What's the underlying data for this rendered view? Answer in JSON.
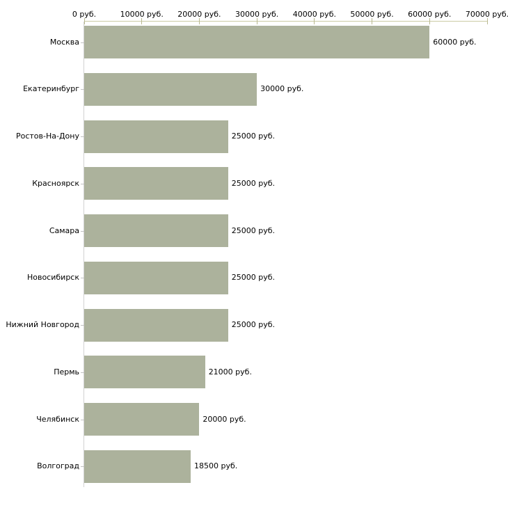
{
  "chart_data": {
    "type": "bar",
    "orientation": "horizontal",
    "title": "",
    "xlabel": "",
    "ylabel": "",
    "unit": "руб.",
    "categories": [
      "Москва",
      "Екатеринбург",
      "Ростов-На-Дону",
      "Красноярск",
      "Самара",
      "Новосибирск",
      "Нижний Новгород",
      "Пермь",
      "Челябинск",
      "Волгоград"
    ],
    "values": [
      60000,
      30000,
      25000,
      25000,
      25000,
      25000,
      25000,
      21000,
      20000,
      18500
    ],
    "value_labels": [
      "60000 руб.",
      "30000 руб.",
      "25000 руб.",
      "25000 руб.",
      "25000 руб.",
      "25000 руб.",
      "25000 руб.",
      "21000 руб.",
      "20000 руб.",
      "18500 руб."
    ],
    "x_axis": {
      "min": 0,
      "max": 70000,
      "tick_step": 10000,
      "tick_values": [
        0,
        10000,
        20000,
        30000,
        40000,
        50000,
        60000,
        70000
      ],
      "tick_labels": [
        "0 руб.",
        "10000 руб.",
        "20000 руб.",
        "30000 руб.",
        "40000 руб.",
        "50000 руб.",
        "60000 руб.",
        "70000 руб."
      ]
    },
    "grid": false,
    "legend": "none",
    "colors": {
      "bar": "#acb29c",
      "axis_line": "#cbcba3",
      "axis_tick": "#b9b990",
      "left_axis_line": "#d2d2d2",
      "category_tick": "#c2c2c2",
      "text": "#000000",
      "background": "#ffffff"
    }
  }
}
